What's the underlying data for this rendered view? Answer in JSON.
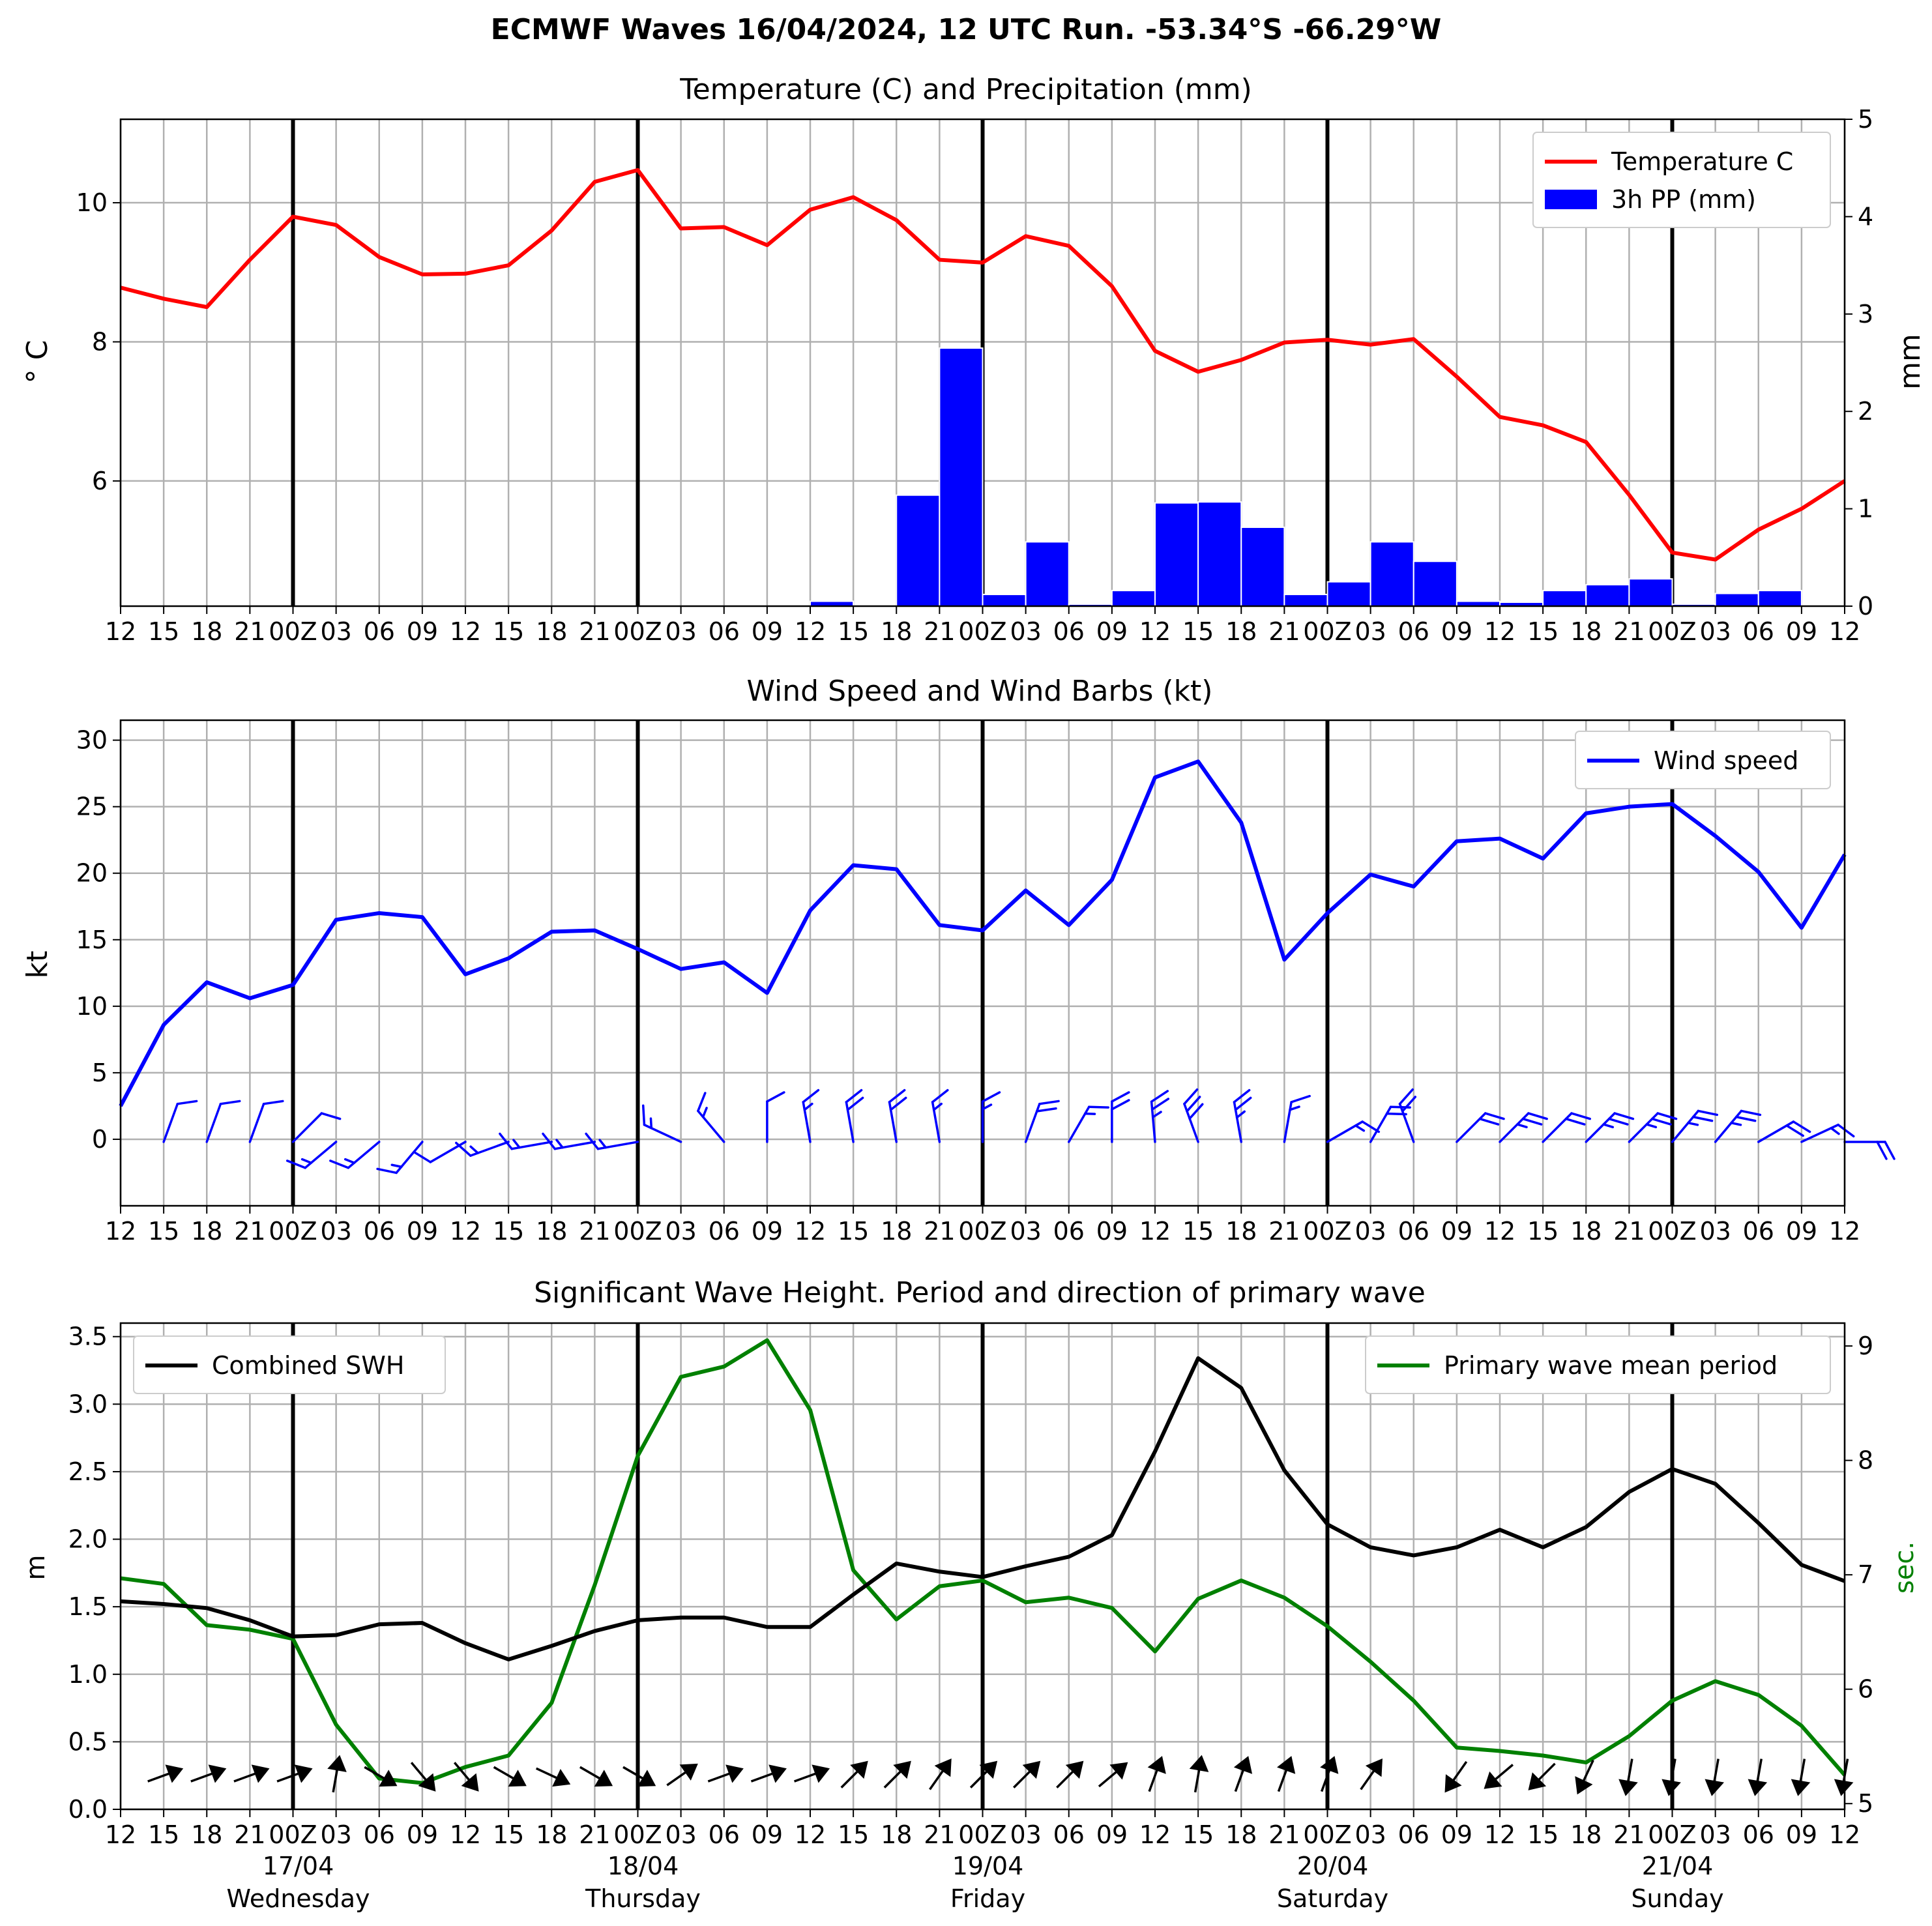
{
  "title": "ECMWF Waves 16/04/2024, 12 UTC Run. -53.34°S -66.29°W",
  "x_tick_labels": [
    "12",
    "15",
    "18",
    "21",
    "00Z",
    "03",
    "06",
    "09",
    "12",
    "15",
    "18",
    "21",
    "00Z",
    "03",
    "06",
    "09",
    "12",
    "15",
    "18",
    "21",
    "00Z",
    "03",
    "06",
    "09",
    "12",
    "15",
    "18",
    "21",
    "00Z",
    "03",
    "06",
    "09",
    "12",
    "15",
    "18",
    "21",
    "00Z",
    "03",
    "06",
    "09",
    "12"
  ],
  "day_labels": [
    {
      "date": "17/04",
      "weekday": "Wednesday"
    },
    {
      "date": "18/04",
      "weekday": "Thursday"
    },
    {
      "date": "19/04",
      "weekday": "Friday"
    },
    {
      "date": "20/04",
      "weekday": "Saturday"
    },
    {
      "date": "21/04",
      "weekday": "Sunday"
    }
  ],
  "colors": {
    "temperature": "#ff0000",
    "precip": "#0000ff",
    "wind": "#0000ff",
    "swh": "#000000",
    "period": "#008000",
    "grid": "#b0b0b0"
  },
  "chart_data": [
    {
      "type": "line",
      "title": "Temperature (C) and Precipitation (mm)",
      "ylabel": "$^\\circ$C",
      "ylabel_display": "° C",
      "y2label": "mm",
      "ylim": [
        4.2,
        11.2
      ],
      "y_ticks": [
        6,
        8,
        10
      ],
      "y2lim": [
        0,
        5
      ],
      "y2_ticks": [
        0,
        1,
        2,
        3,
        4,
        5
      ],
      "legend": [
        "Temperature C",
        "3h PP (mm)"
      ],
      "legend_position": "top-right",
      "grid": true,
      "series": [
        {
          "name": "Temperature C",
          "type": "line",
          "values": [
            8.78,
            8.62,
            8.5,
            9.18,
            9.8,
            9.68,
            9.22,
            8.97,
            8.98,
            9.1,
            9.6,
            10.3,
            10.47,
            9.63,
            9.65,
            9.39,
            9.9,
            10.08,
            9.75,
            9.18,
            9.14,
            9.52,
            9.38,
            8.8,
            7.87,
            7.57,
            7.74,
            7.99,
            8.03,
            7.96,
            8.04,
            7.5,
            6.92,
            6.8,
            6.56,
            5.8,
            4.97,
            4.87,
            5.3,
            5.6,
            6.0
          ]
        },
        {
          "name": "3h PP (mm)",
          "type": "bar",
          "values": [
            0,
            0,
            0,
            0,
            0,
            0,
            0,
            0,
            0,
            0,
            0,
            0,
            0,
            0,
            0,
            0,
            0.05,
            0,
            1.14,
            2.65,
            0.12,
            0.66,
            0.02,
            0.16,
            1.06,
            1.07,
            0.81,
            0.12,
            0.25,
            0.66,
            0.46,
            0.05,
            0.04,
            0.16,
            0.22,
            0.28,
            0.02,
            0.13,
            0.16,
            0
          ]
        }
      ]
    },
    {
      "type": "line",
      "title": "Wind Speed and Wind Barbs (kt)",
      "ylabel": "kt",
      "ylim": [
        -5,
        31.5
      ],
      "y_ticks": [
        0,
        5,
        10,
        15,
        20,
        25,
        30
      ],
      "legend": [
        "Wind speed"
      ],
      "legend_position": "top-right",
      "grid": true,
      "series": [
        {
          "name": "Wind speed",
          "values": [
            2.5,
            8.6,
            11.8,
            10.6,
            11.6,
            16.5,
            17.0,
            16.7,
            12.4,
            13.6,
            15.6,
            15.7,
            14.3,
            12.8,
            13.3,
            11.0,
            17.2,
            20.6,
            20.3,
            16.1,
            15.7,
            18.7,
            16.1,
            19.5,
            27.2,
            28.4,
            23.8,
            13.5,
            17.0,
            19.9,
            19.0,
            22.4,
            22.6,
            21.1,
            24.5,
            25.0,
            25.2,
            22.8,
            20.1,
            15.9,
            21.4
          ]
        }
      ],
      "barb_direction_deg": [
        null,
        20,
        20,
        20,
        45,
        230,
        230,
        220,
        240,
        250,
        260,
        260,
        260,
        295,
        320,
        0,
        350,
        350,
        350,
        350,
        0,
        20,
        30,
        0,
        355,
        340,
        350,
        10,
        60,
        30,
        340,
        45,
        45,
        45,
        45,
        45,
        40,
        40,
        60,
        65,
        90
      ]
    },
    {
      "type": "line",
      "title": "Significant Wave Height. Period and direction of primary wave",
      "ylabel": "m",
      "y2label": "sec.",
      "ylim": [
        0,
        3.6
      ],
      "y_ticks": [
        0.0,
        0.5,
        1.0,
        1.5,
        2.0,
        2.5,
        3.0,
        3.5
      ],
      "y2lim": [
        4.95,
        9.2
      ],
      "y2_ticks": [
        5,
        6,
        7,
        8,
        9
      ],
      "legend": [
        "Combined SWH",
        "Primary wave mean period"
      ],
      "legend_position": [
        "top-left",
        "top-right"
      ],
      "grid": true,
      "series": [
        {
          "name": "Combined SWH",
          "values": [
            1.54,
            1.52,
            1.49,
            1.4,
            1.28,
            1.29,
            1.37,
            1.38,
            1.23,
            1.11,
            1.21,
            1.32,
            1.4,
            1.42,
            1.42,
            1.35,
            1.35,
            1.59,
            1.82,
            1.76,
            1.72,
            1.8,
            1.87,
            2.03,
            2.65,
            3.34,
            3.12,
            2.51,
            2.11,
            1.94,
            1.88,
            1.94,
            2.07,
            1.94,
            2.09,
            2.35,
            2.52,
            2.41,
            2.12,
            1.81,
            1.69
          ]
        },
        {
          "name": "Primary wave mean period",
          "values": [
            6.97,
            6.92,
            6.56,
            6.52,
            6.44,
            5.69,
            5.22,
            5.18,
            5.32,
            5.42,
            5.88,
            6.91,
            8.04,
            8.73,
            8.82,
            9.05,
            8.44,
            7.04,
            6.61,
            6.9,
            6.95,
            6.76,
            6.8,
            6.71,
            6.33,
            6.79,
            6.95,
            6.8,
            6.55,
            6.24,
            5.9,
            5.49,
            5.46,
            5.42,
            5.36,
            5.59,
            5.9,
            6.07,
            5.95,
            5.68,
            5.25
          ]
        }
      ],
      "wave_direction_deg": [
        null,
        250,
        250,
        250,
        250,
        190,
        300,
        320,
        320,
        300,
        295,
        300,
        300,
        235,
        250,
        250,
        250,
        225,
        225,
        215,
        225,
        225,
        225,
        230,
        200,
        190,
        200,
        200,
        200,
        215,
        null,
        35,
        50,
        45,
        25,
        10,
        10,
        10,
        10,
        10,
        10
      ]
    }
  ]
}
